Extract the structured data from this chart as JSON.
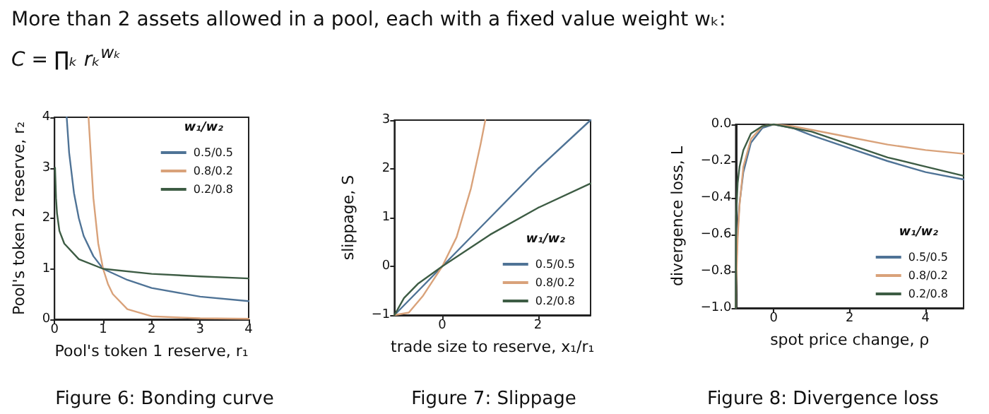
{
  "chart_data": [
    {
      "type": "line",
      "title": "More than 2 assets allowed in a pool, each with a fixed value weight wₖ:",
      "subtitle": "C = ∏ₖ rₖ$^{wₖ}$",
      "xlabel": "Pool's token 1 reserve, r₁",
      "ylabel": "Pool's token 2 reserve, r₂",
      "legend_title": "w₁/w₂",
      "legend": "top right",
      "marker": "none",
      "line_style": "solid",
      "grid": false,
      "xlim": [
        0,
        4
      ],
      "ylim": [
        0,
        4
      ],
      "xticks": [
        0,
        1,
        2,
        3,
        4
      ],
      "yticks": [
        0,
        1,
        2,
        3,
        4
      ],
      "series": [
        {
          "name": "0.5/0.5",
          "color": "#4f7396",
          "x": [
            0.25,
            0.3,
            0.4,
            0.5,
            0.6,
            0.8,
            1,
            1.5,
            2,
            3,
            4
          ],
          "values": [
            4,
            3.3,
            2.5,
            2,
            1.65,
            1.25,
            1,
            0.78,
            0.62,
            0.45,
            0.36
          ]
        },
        {
          "name": "0.8/0.2",
          "color": "#d9a27a",
          "x": [
            0.7,
            0.75,
            0.8,
            0.9,
            1,
            1.1,
            1.2,
            1.5,
            2,
            3,
            4
          ],
          "values": [
            4,
            3.2,
            2.4,
            1.5,
            1,
            0.7,
            0.5,
            0.2,
            0.06,
            0.02,
            0.01
          ]
        },
        {
          "name": "0.2/0.8",
          "color": "#3d5c44",
          "x": [
            0.01,
            0.03,
            0.05,
            0.1,
            0.2,
            0.5,
            1,
            2,
            3,
            4
          ],
          "values": [
            3,
            2.4,
            2.1,
            1.75,
            1.5,
            1.19,
            1,
            0.9,
            0.85,
            0.81
          ]
        }
      ],
      "annotations": [
        "Figure 6: Bonding curve"
      ]
    },
    {
      "type": "line",
      "xlabel": "trade size to reserve, x₁/r₁",
      "ylabel": "slippage, S",
      "legend_title": "w₁/w₂",
      "legend": "bottom right",
      "marker": "none",
      "line_style": "solid",
      "grid": false,
      "xlim": [
        -1,
        3.1
      ],
      "ylim": [
        -1,
        3
      ],
      "xticks": [
        0,
        2
      ],
      "yticks": [
        {
          "value": -1,
          "label": "−1"
        },
        0,
        1,
        2,
        3
      ],
      "series": [
        {
          "name": "0.5/0.5",
          "color": "#4f7396",
          "x": [
            -1,
            0,
            1,
            2,
            3.1
          ],
          "values": [
            -1,
            0,
            1,
            2,
            3
          ]
        },
        {
          "name": "0.8/0.2",
          "color": "#d9a27a",
          "x": [
            -1,
            -0.7,
            -0.4,
            -0.2,
            0,
            0.3,
            0.6,
            0.8,
            0.9
          ],
          "values": [
            -1,
            -0.95,
            -0.6,
            -0.3,
            0,
            0.6,
            1.6,
            2.5,
            3
          ]
        },
        {
          "name": "0.2/0.8",
          "color": "#3d5c44",
          "x": [
            -1,
            -0.8,
            -0.5,
            0,
            1,
            2,
            3.1
          ],
          "values": [
            -1,
            -0.65,
            -0.35,
            0,
            0.65,
            1.2,
            1.7
          ]
        }
      ],
      "annotations": [
        "Figure 7: Slippage"
      ]
    },
    {
      "type": "line",
      "xlabel": "spot price change, ρ",
      "ylabel": "divergence loss, L",
      "legend_title": "w₁/w₂",
      "legend": "bottom right",
      "marker": "none",
      "line_style": "solid",
      "grid": false,
      "xlim": [
        -1,
        5
      ],
      "ylim": [
        -1,
        0
      ],
      "xticks": [
        0,
        2,
        4
      ],
      "yticks": [
        {
          "value": -1,
          "label": "−1.0"
        },
        {
          "value": -0.8,
          "label": "−0.8"
        },
        {
          "value": -0.6,
          "label": "−0.6"
        },
        {
          "value": -0.4,
          "label": "−0.4"
        },
        {
          "value": -0.2,
          "label": "−0.2"
        },
        {
          "value": 0,
          "label": "0.0"
        }
      ],
      "series": [
        {
          "name": "0.5/0.5",
          "color": "#4f7396",
          "x": [
            -1,
            -0.99,
            -0.95,
            -0.9,
            -0.8,
            -0.6,
            -0.3,
            0,
            0.5,
            1,
            2,
            3,
            4,
            5
          ],
          "values": [
            -1,
            -0.8,
            -0.57,
            -0.43,
            -0.26,
            -0.1,
            -0.02,
            0,
            -0.02,
            -0.06,
            -0.13,
            -0.2,
            -0.26,
            -0.3
          ]
        },
        {
          "name": "0.8/0.2",
          "color": "#d9a27a",
          "x": [
            -1,
            -0.99,
            -0.95,
            -0.9,
            -0.8,
            -0.6,
            -0.3,
            0,
            0.5,
            1,
            2,
            3,
            4,
            5
          ],
          "values": [
            -1,
            -0.88,
            -0.62,
            -0.44,
            -0.23,
            -0.08,
            -0.01,
            0,
            -0.01,
            -0.03,
            -0.07,
            -0.11,
            -0.14,
            -0.16
          ]
        },
        {
          "name": "0.2/0.8",
          "color": "#3d5c44",
          "x": [
            -1,
            -0.99,
            -0.95,
            -0.9,
            -0.8,
            -0.6,
            -0.3,
            0,
            0.5,
            1,
            2,
            3,
            4,
            5
          ],
          "values": [
            -1,
            -0.5,
            -0.32,
            -0.23,
            -0.14,
            -0.05,
            -0.01,
            0,
            -0.02,
            -0.04,
            -0.11,
            -0.18,
            -0.23,
            -0.28
          ]
        }
      ],
      "annotations": [
        "Figure 8: Divergence loss"
      ]
    }
  ]
}
